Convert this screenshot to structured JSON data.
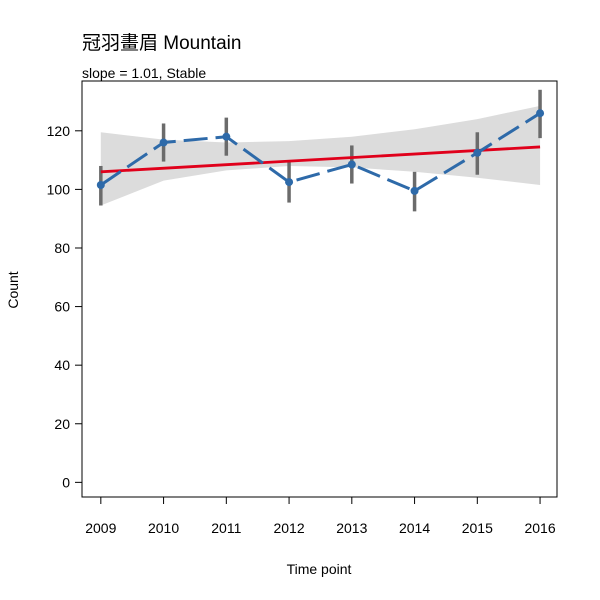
{
  "chart_data": {
    "type": "line",
    "title": "冠羽畫眉 Mountain",
    "subtitle": "slope = 1.01, Stable",
    "xlabel": "Time point",
    "ylabel": "Count",
    "x": [
      2009,
      2010,
      2011,
      2012,
      2013,
      2014,
      2015,
      2016
    ],
    "y_ticks": [
      0,
      20,
      40,
      60,
      80,
      100,
      120
    ],
    "ylim": [
      -5,
      137
    ],
    "xlim": [
      2008.7,
      2016.27
    ],
    "grid": false,
    "series": [
      {
        "values": [
          101.5,
          116,
          118,
          102.5,
          108.5,
          99.5,
          112.5,
          126
        ],
        "error_low": [
          94.5,
          109.5,
          111.5,
          95.5,
          102,
          92.5,
          105,
          117.5
        ],
        "error_high": [
          108,
          122.5,
          124.5,
          110,
          115,
          106,
          119.5,
          134
        ],
        "color": "#2e6aa9",
        "line_style": "dashed"
      }
    ],
    "trend": {
      "slope": 1.01,
      "start": 106,
      "end": 114.5,
      "color": "#e0001b"
    },
    "confidence_band": {
      "lower": [
        94.5,
        103,
        106.5,
        108,
        107.5,
        106,
        104,
        101.5
      ],
      "upper": [
        119.5,
        117,
        116,
        116.5,
        118,
        120.5,
        124,
        128.5
      ],
      "color": "#dcdcdc"
    }
  }
}
